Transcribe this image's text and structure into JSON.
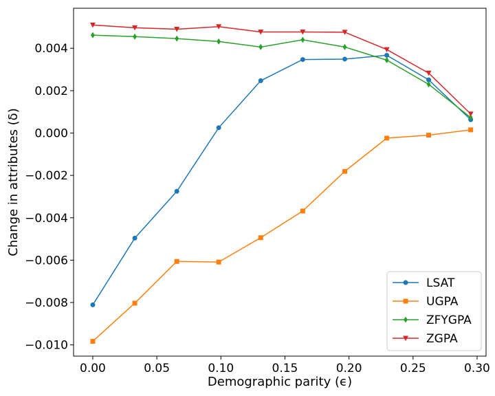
{
  "chart_data": {
    "type": "line",
    "title": "",
    "xlabel": "Demographic parity (ϵ)",
    "ylabel": "Change in attributes (δ)",
    "xlim": [
      -0.015,
      0.307
    ],
    "ylim": [
      -0.01053,
      0.00589
    ],
    "xticks": [
      0.0,
      0.05,
      0.1,
      0.15,
      0.2,
      0.25,
      0.3
    ],
    "xtick_labels": [
      "0.00",
      "0.05",
      "0.10",
      "0.15",
      "0.20",
      "0.25",
      "0.30"
    ],
    "yticks": [
      -0.01,
      -0.008,
      -0.006,
      -0.004,
      -0.002,
      0.0,
      0.002,
      0.004
    ],
    "ytick_labels": [
      "−0.010",
      "−0.008",
      "−0.006",
      "−0.004",
      "−0.002",
      "0.000",
      "0.002",
      "0.004"
    ],
    "grid": false,
    "legend_position": "lower-right",
    "x": [
      0.0,
      0.0328,
      0.0656,
      0.0983,
      0.1311,
      0.1639,
      0.1967,
      0.2295,
      0.2622,
      0.295
    ],
    "series": [
      {
        "name": "LSAT",
        "color": "#1f77b4",
        "marker": "circle",
        "values": [
          -0.00811,
          -0.00496,
          -0.00275,
          0.00025,
          0.00247,
          0.00347,
          0.00349,
          0.00367,
          0.00251,
          0.00063
        ]
      },
      {
        "name": "UGPA",
        "color": "#ff7f0e",
        "marker": "square",
        "values": [
          -0.00983,
          -0.00803,
          -0.00606,
          -0.00609,
          -0.00494,
          -0.00368,
          -0.00181,
          -0.00024,
          -0.0001,
          0.00015
        ]
      },
      {
        "name": "ZFYGPA",
        "color": "#2ca02c",
        "marker": "diamond",
        "values": [
          0.00462,
          0.00455,
          0.00446,
          0.00432,
          0.00406,
          0.0044,
          0.00406,
          0.00344,
          0.0023,
          0.00073
        ]
      },
      {
        "name": "ZGPA",
        "color": "#d62728",
        "marker": "triangle-down",
        "values": [
          0.0051,
          0.00497,
          0.0049,
          0.00502,
          0.00477,
          0.00477,
          0.00476,
          0.00394,
          0.00283,
          0.0009
        ]
      }
    ]
  }
}
